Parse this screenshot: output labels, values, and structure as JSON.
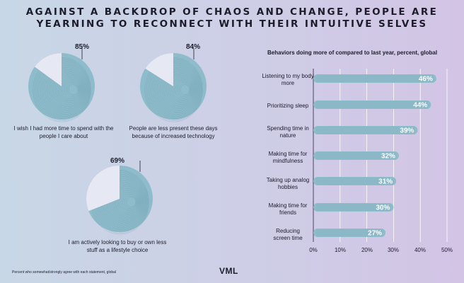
{
  "title_lines": [
    "AGAINST A BACKDROP OF CHAOS AND CHANGE, PEOPLE ARE",
    "YEARNING TO RECONNECT WITH THEIR INTUITIVE SELVES"
  ],
  "footnote": "Percent who somewhat/strongly agree with each statement, global",
  "logo": "VML",
  "colors": {
    "pie_fill": "#8fbccb",
    "pie_rest": "#e6e8f3",
    "bar_fill": "#8fbccb",
    "line": "#5a8fa0"
  },
  "chart_data": [
    {
      "type": "pie",
      "items": [
        {
          "value": 85,
          "label": "85%",
          "text": "I wish I had more time to spend with the people I care about"
        },
        {
          "value": 84,
          "label": "84%",
          "text": "People are less present these days because of increased technology"
        },
        {
          "value": 69,
          "label": "69%",
          "text": "I am actively looking to buy or own less stuff as a lifestyle choice"
        }
      ]
    },
    {
      "type": "bar",
      "orientation": "horizontal",
      "title": "Behaviors doing more of compared to last year, percent, global",
      "categories": [
        "Listening to my body more",
        "Prioritizing sleep",
        "Spending time in nature",
        "Making time for mindfulness",
        "Taking up analog hobbies",
        "Making time for friends",
        "Reducing screen time"
      ],
      "values": [
        46,
        44,
        39,
        32,
        31,
        30,
        27
      ],
      "labels": [
        "46%",
        "44%",
        "39%",
        "32%",
        "31%",
        "30%",
        "27%"
      ],
      "xlim": [
        0,
        50
      ],
      "ticks": [
        "0%",
        "10%",
        "20%",
        "30%",
        "40%",
        "50%"
      ],
      "grid": true
    }
  ]
}
